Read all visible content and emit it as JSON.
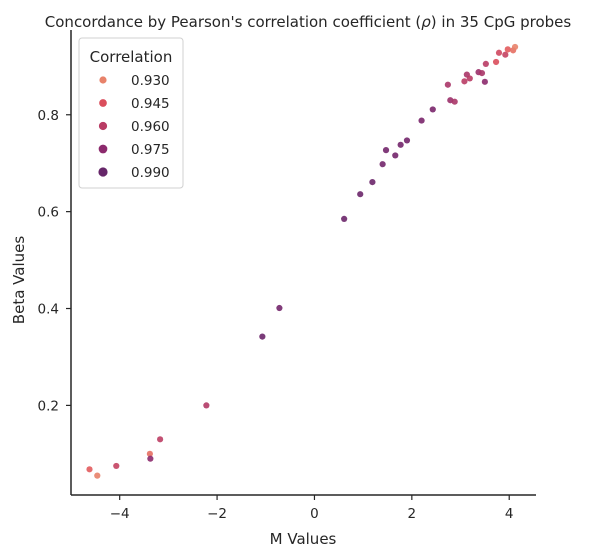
{
  "chart_data": {
    "type": "scatter",
    "title": "Concordance by Pearson's correlation coefficient (",
    "title_symbol": "ρ",
    "title_suffix": ") in 35 CpG probes",
    "xlabel": "M Values",
    "ylabel": "Beta Values",
    "xlim": [
      -5.0,
      4.55
    ],
    "ylim": [
      0.015,
      0.975
    ],
    "xticks": [
      -4,
      -2,
      0,
      2,
      4
    ],
    "xtick_labels": [
      "−4",
      "−2",
      "0",
      "2",
      "4"
    ],
    "yticks": [
      0.2,
      0.4,
      0.6,
      0.8
    ],
    "ytick_labels": [
      "0.2",
      "0.4",
      "0.6",
      "0.8"
    ],
    "grid": false,
    "legend": {
      "title": "Correlation",
      "placement": "top-left",
      "entries": [
        {
          "label": "0.930",
          "value": 0.93
        },
        {
          "label": "0.945",
          "value": 0.945
        },
        {
          "label": "0.960",
          "value": 0.96
        },
        {
          "label": "0.975",
          "value": 0.975
        },
        {
          "label": "0.990",
          "value": 0.99
        }
      ]
    },
    "color_scale": {
      "min": 0.925,
      "max": 0.995,
      "colors": [
        "#eb9670",
        "#e0515a",
        "#b93c65",
        "#85276e",
        "#5a2567"
      ]
    },
    "points": [
      {
        "x": -4.62,
        "y": 0.068,
        "c": 0.94
      },
      {
        "x": -4.46,
        "y": 0.055,
        "c": 0.93
      },
      {
        "x": -4.07,
        "y": 0.075,
        "c": 0.955
      },
      {
        "x": -3.38,
        "y": 0.1,
        "c": 0.935
      },
      {
        "x": -3.37,
        "y": 0.09,
        "c": 0.975
      },
      {
        "x": -3.17,
        "y": 0.13,
        "c": 0.958
      },
      {
        "x": -2.22,
        "y": 0.2,
        "c": 0.962
      },
      {
        "x": -1.07,
        "y": 0.342,
        "c": 0.988
      },
      {
        "x": -0.72,
        "y": 0.401,
        "c": 0.985
      },
      {
        "x": 0.61,
        "y": 0.585,
        "c": 0.988
      },
      {
        "x": 0.94,
        "y": 0.636,
        "c": 0.988
      },
      {
        "x": 1.19,
        "y": 0.661,
        "c": 0.988
      },
      {
        "x": 1.4,
        "y": 0.698,
        "c": 0.985
      },
      {
        "x": 1.47,
        "y": 0.727,
        "c": 0.985
      },
      {
        "x": 1.66,
        "y": 0.716,
        "c": 0.985
      },
      {
        "x": 1.77,
        "y": 0.738,
        "c": 0.985
      },
      {
        "x": 1.9,
        "y": 0.747,
        "c": 0.985
      },
      {
        "x": 2.2,
        "y": 0.788,
        "c": 0.982
      },
      {
        "x": 2.43,
        "y": 0.811,
        "c": 0.982
      },
      {
        "x": 2.74,
        "y": 0.862,
        "c": 0.965
      },
      {
        "x": 2.79,
        "y": 0.83,
        "c": 0.97
      },
      {
        "x": 2.88,
        "y": 0.827,
        "c": 0.965
      },
      {
        "x": 3.08,
        "y": 0.869,
        "c": 0.96
      },
      {
        "x": 3.13,
        "y": 0.883,
        "c": 0.965
      },
      {
        "x": 3.19,
        "y": 0.875,
        "c": 0.96
      },
      {
        "x": 3.37,
        "y": 0.888,
        "c": 0.97
      },
      {
        "x": 3.44,
        "y": 0.886,
        "c": 0.965
      },
      {
        "x": 3.5,
        "y": 0.868,
        "c": 0.975
      },
      {
        "x": 3.52,
        "y": 0.905,
        "c": 0.96
      },
      {
        "x": 3.73,
        "y": 0.909,
        "c": 0.945
      },
      {
        "x": 3.79,
        "y": 0.928,
        "c": 0.95
      },
      {
        "x": 3.92,
        "y": 0.924,
        "c": 0.955
      },
      {
        "x": 3.97,
        "y": 0.935,
        "c": 0.94
      },
      {
        "x": 4.08,
        "y": 0.933,
        "c": 0.935
      },
      {
        "x": 4.12,
        "y": 0.94,
        "c": 0.93
      }
    ]
  }
}
